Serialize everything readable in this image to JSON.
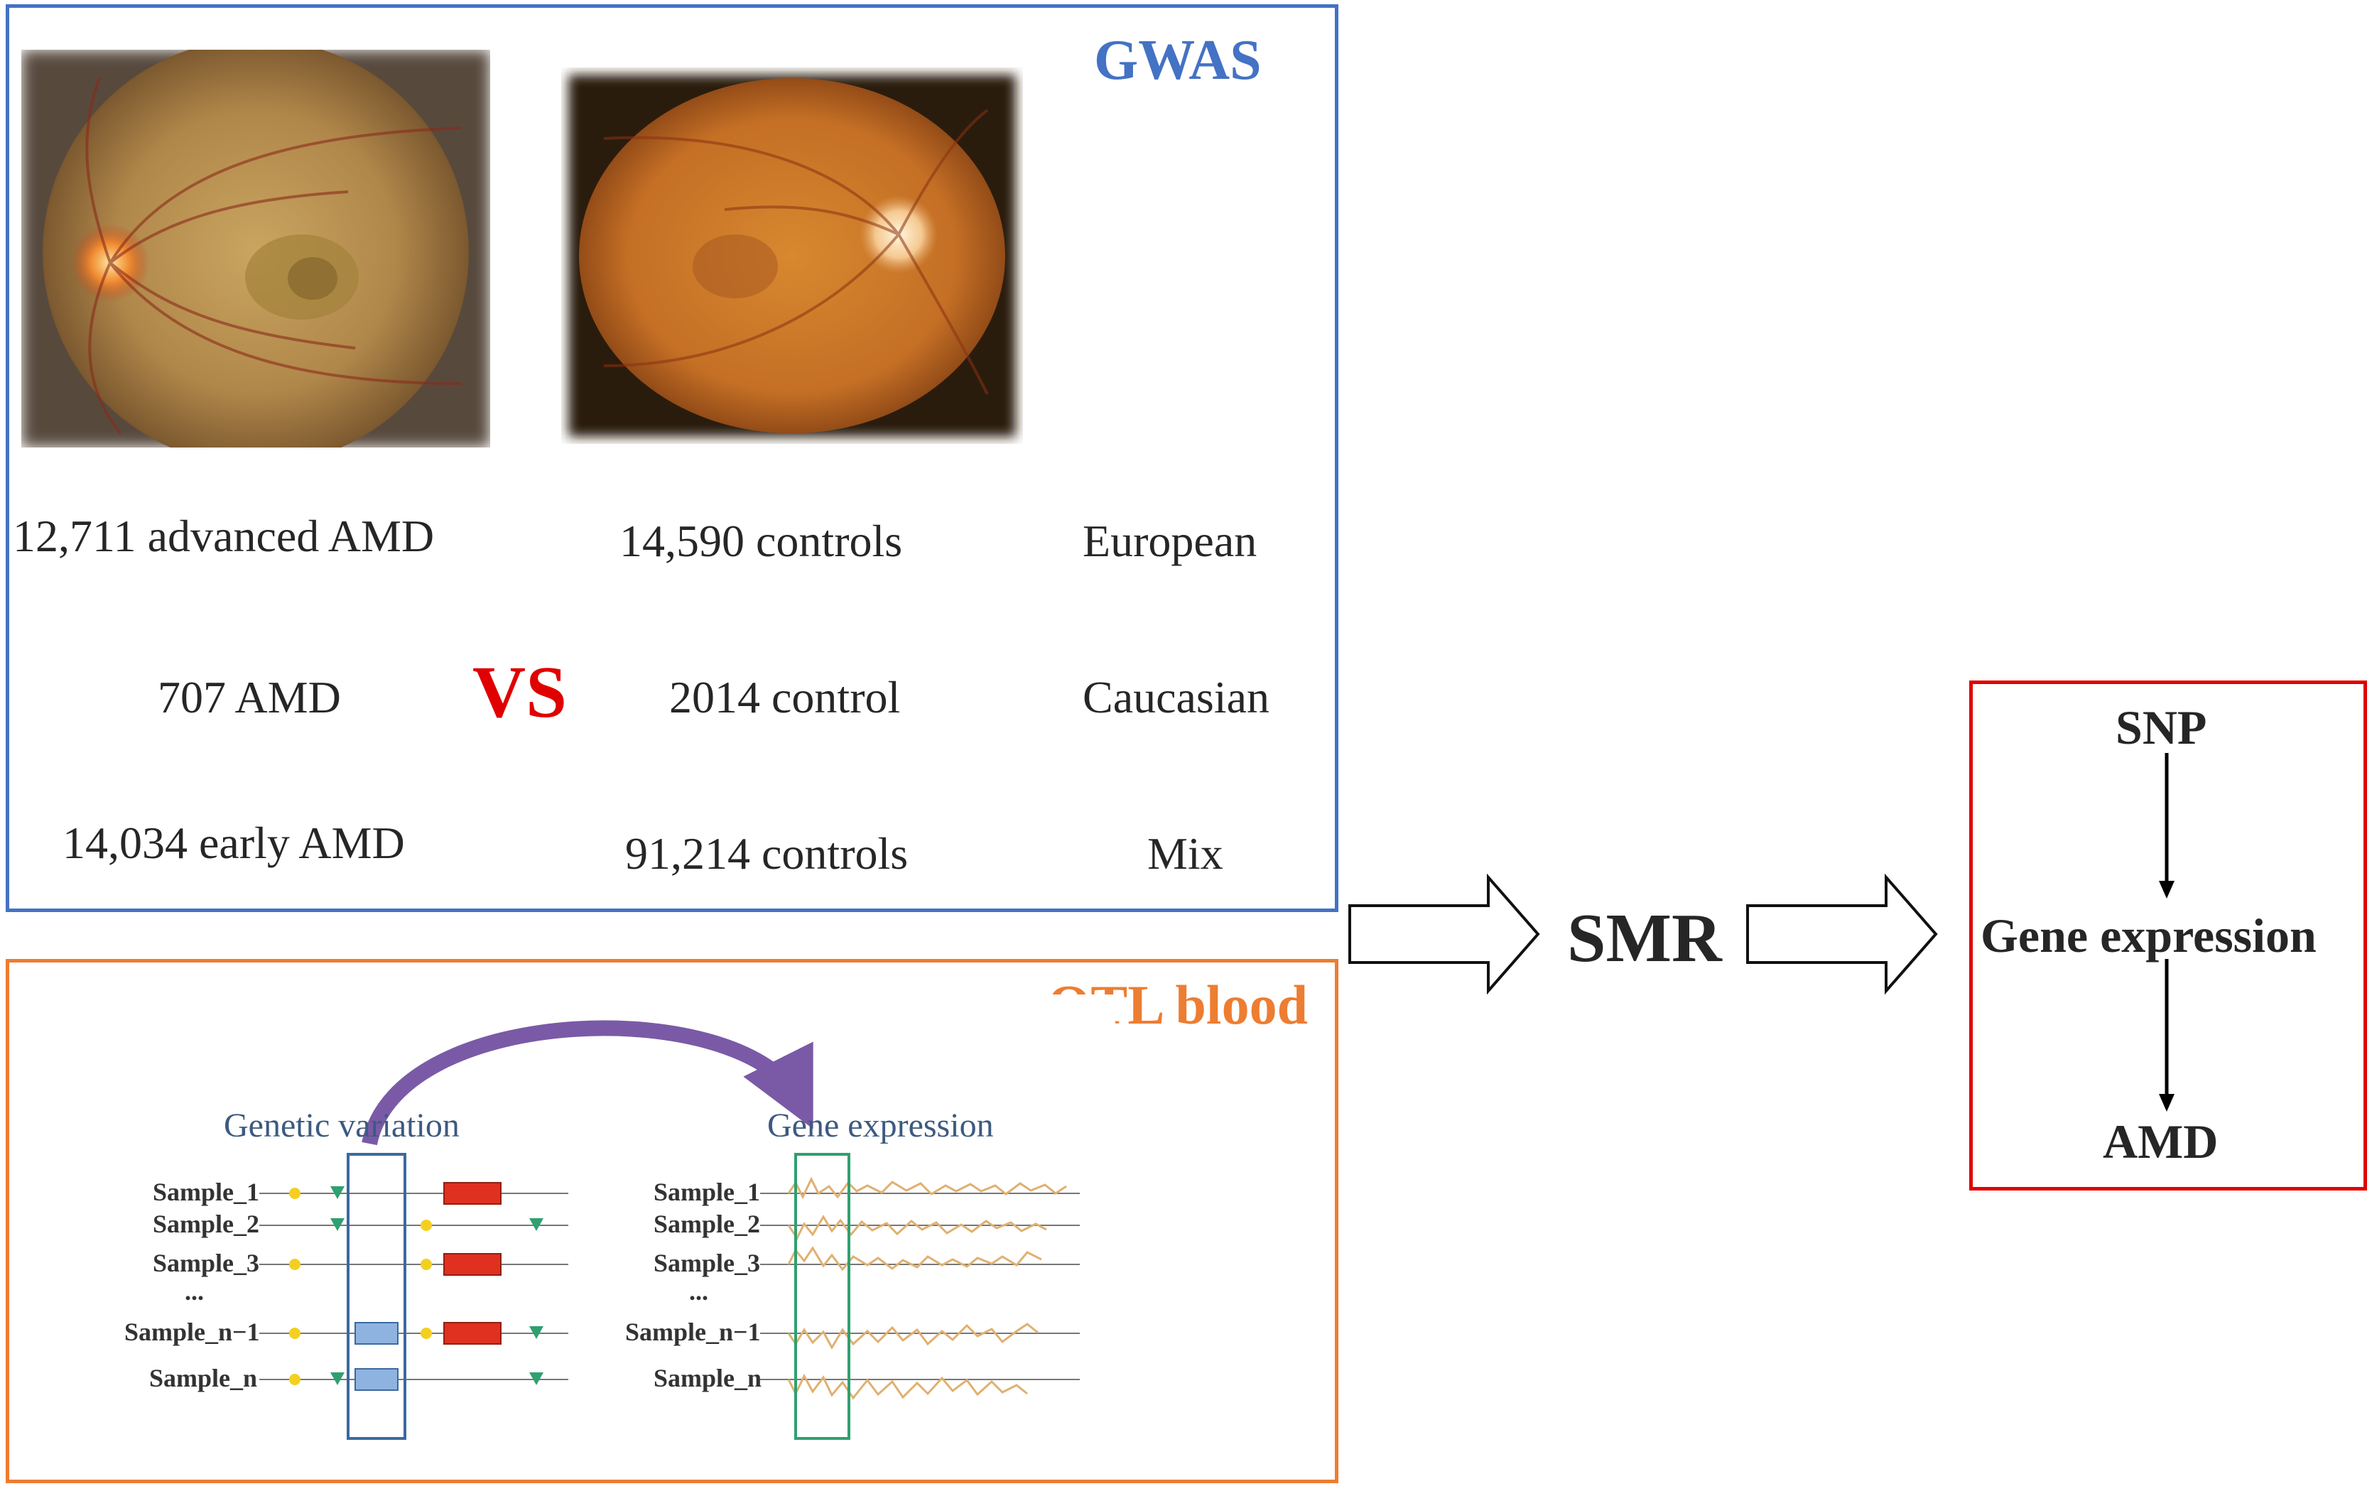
{
  "gwas": {
    "title": "GWAS",
    "rows": [
      {
        "cases": "12,711 advanced AMD",
        "controls": "14,590 controls",
        "population": "European"
      },
      {
        "cases": "707 AMD",
        "controls": "2014 control",
        "population": "Caucasian"
      },
      {
        "cases": "14,034 early AMD",
        "controls": "91,214 controls",
        "population": "Mix"
      }
    ],
    "vs_label": "VS",
    "images": [
      "retina-image-amd",
      "retina-image-control"
    ]
  },
  "eqtl": {
    "title": "eQTL blood",
    "left_heading": "Genetic variation",
    "right_heading": "Gene expression",
    "samples": [
      "Sample_1",
      "Sample_2",
      "Sample_3",
      "...",
      "Sample_n−1",
      "Sample_n"
    ]
  },
  "flow": {
    "smr_label": "SMR"
  },
  "result": {
    "top": "SNP",
    "middle": "Gene expression",
    "bottom": "AMD"
  },
  "colors": {
    "gwas_border": "#4472c4",
    "eqtl_border": "#ed7d31",
    "result_border": "#e00000",
    "vs": "#e00000"
  }
}
